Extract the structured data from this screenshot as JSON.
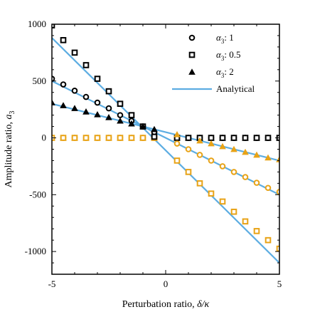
{
  "chart_data": {
    "type": "scatter",
    "xlabel_text": "Perturbation ratio, ",
    "xlabel_symbol": "δ/κ",
    "ylabel_text": "Amplitude ratio, ",
    "ylabel_symbol": "a",
    "ylabel_sub": "3",
    "xlim": [
      -5,
      5
    ],
    "ylim": [
      -1200,
      1000
    ],
    "x_ticks": [
      -5,
      0,
      5
    ],
    "y_ticks": [
      -1000,
      -500,
      0,
      500,
      1000
    ],
    "x_tick_labels": [
      "-5",
      "0",
      "5"
    ],
    "y_tick_labels": [
      "-1000",
      "-500",
      "0",
      "500",
      "1000"
    ],
    "legend_position": "top-right",
    "colors": {
      "positive_branch": "#000000",
      "negative_branch": "#E8A317",
      "analytical": "#5DADE2"
    },
    "legend": [
      {
        "marker": "circle",
        "label_pre": "α",
        "label_sub": "3",
        "label_post": ": 1"
      },
      {
        "marker": "square",
        "label_pre": "α",
        "label_sub": "3",
        "label_post": ": 0.5"
      },
      {
        "marker": "triangle",
        "label_pre": "α",
        "label_sub": "3",
        "label_post": ": 2"
      },
      {
        "marker": "line",
        "label_pre": "Analytical",
        "label_sub": "",
        "label_post": ""
      }
    ],
    "series": [
      {
        "name": "α3: 1",
        "marker": "circle",
        "x": [
          -5,
          -4.5,
          -4,
          -3.5,
          -3,
          -2.5,
          -2,
          -1.5,
          -1,
          -0.5,
          0,
          0.5,
          1,
          1.5,
          2,
          2.5,
          3,
          3.5,
          4,
          4.5,
          5
        ],
        "y": [
          520,
          470,
          415,
          360,
          310,
          260,
          200,
          150,
          100,
          50,
          0,
          -50,
          -100,
          -150,
          -200,
          -250,
          -300,
          -345,
          -395,
          -440,
          -475
        ]
      },
      {
        "name": "α3: 0.5",
        "marker": "square",
        "x": [
          -5,
          -4.5,
          -4,
          -3.5,
          -3,
          -2.5,
          -2,
          -1.5,
          -1,
          -0.5,
          0,
          0.5,
          1,
          1.5,
          2,
          2.5,
          3,
          3.5,
          4,
          4.5,
          5
        ],
        "y": [
          990,
          860,
          750,
          640,
          520,
          410,
          300,
          200,
          100,
          10,
          0,
          -100,
          -195,
          -290,
          -385,
          -480,
          -565,
          -655,
          -740,
          -820,
          -900
        ]
      },
      {
        "name": "α3: 2",
        "marker": "triangle",
        "x": [
          -5,
          -4.5,
          -4,
          -3.5,
          -3,
          -2.5,
          -2,
          -1.5,
          -1,
          -0.5,
          0,
          0.5,
          1,
          1.5,
          2,
          2.5,
          3,
          3.5,
          4,
          4.5,
          5
        ],
        "y": [
          310,
          285,
          260,
          230,
          205,
          180,
          150,
          125,
          100,
          75,
          45,
          30,
          0,
          -25,
          -50,
          -75,
          -100,
          -125,
          -150,
          -175,
          -190
        ]
      },
      {
        "name": "α3: 0.5 (lower branch)",
        "marker": "square",
        "x": [
          -5,
          -4.5,
          -4,
          -3.5,
          -3,
          -2.5,
          -2,
          -1.5,
          -1,
          -0.5,
          0,
          0.5,
          1,
          1.5,
          2,
          2.5,
          3,
          3.5,
          4,
          4.5,
          5
        ],
        "y": [
          0,
          0,
          0,
          0,
          0,
          0,
          0,
          0,
          0,
          0,
          -100,
          -200,
          -300,
          -400,
          -490,
          -560,
          -650,
          -735,
          -820,
          -900,
          -975
        ]
      }
    ],
    "analytical_lines": [
      {
        "x": [
          -5,
          5
        ],
        "y": [
          880,
          -1100
        ]
      },
      {
        "x": [
          -5,
          5
        ],
        "y": [
          500,
          -500
        ]
      },
      {
        "x": [
          -5,
          5
        ],
        "y": [
          300,
          -200
        ]
      }
    ]
  }
}
